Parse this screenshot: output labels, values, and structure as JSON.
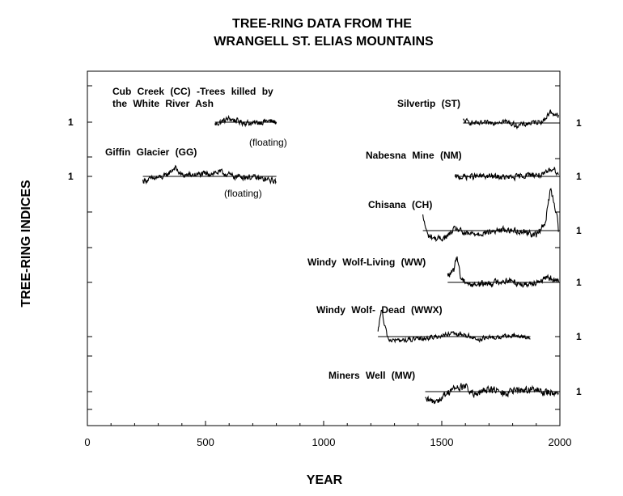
{
  "chart_data": {
    "type": "line",
    "title_line1": "TREE-RING DATA FROM THE",
    "title_line2": "WRANGELL ST. ELIAS MOUNTAINS",
    "xlabel": "YEAR",
    "ylabel": "TREE-RING INDICES",
    "xlim": [
      0,
      2000
    ],
    "xticks": [
      0,
      500,
      1000,
      1500,
      2000
    ],
    "reference_value_label": "1",
    "series": [
      {
        "id": "cc",
        "label_lines": [
          "Cub Creek (CC) -Trees killed by",
          "the White River Ash"
        ],
        "note": "(floating)",
        "start": 540,
        "end": 800,
        "index_label_side": "left",
        "profile": [
          [
            540,
            0.95
          ],
          [
            600,
            1.08
          ],
          [
            650,
            1.0
          ],
          [
            700,
            0.97
          ],
          [
            760,
            1.03
          ],
          [
            800,
            1.0
          ]
        ],
        "amplitude": 0.09
      },
      {
        "id": "gg",
        "label_lines": [
          "Giffin Glacier (GG)"
        ],
        "note": "(floating)",
        "start": 235,
        "end": 800,
        "index_label_side": "left",
        "profile": [
          [
            235,
            0.9
          ],
          [
            280,
            0.95
          ],
          [
            330,
            1.0
          ],
          [
            370,
            1.2
          ],
          [
            400,
            1.02
          ],
          [
            500,
            1.05
          ],
          [
            560,
            1.1
          ],
          [
            620,
            1.0
          ],
          [
            700,
            0.98
          ],
          [
            760,
            0.92
          ],
          [
            800,
            0.9
          ]
        ],
        "amplitude": 0.09
      },
      {
        "id": "st",
        "label_lines": [
          "Silvertip (ST)"
        ],
        "note": "",
        "start": 1590,
        "end": 1995,
        "index_label_side": "right",
        "profile": [
          [
            1590,
            1.05
          ],
          [
            1650,
            0.98
          ],
          [
            1700,
            1.0
          ],
          [
            1760,
            1.05
          ],
          [
            1820,
            0.94
          ],
          [
            1880,
            1.0
          ],
          [
            1930,
            1.05
          ],
          [
            1960,
            1.25
          ],
          [
            1995,
            1.15
          ]
        ],
        "amplitude": 0.08
      },
      {
        "id": "nm",
        "label_lines": [
          "Nabesna Mine (NM)"
        ],
        "note": "",
        "start": 1555,
        "end": 1995,
        "index_label_side": "right",
        "profile": [
          [
            1555,
            0.98
          ],
          [
            1620,
            1.0
          ],
          [
            1700,
            1.0
          ],
          [
            1800,
            0.97
          ],
          [
            1880,
            1.05
          ],
          [
            1930,
            1.02
          ],
          [
            1970,
            1.2
          ],
          [
            1995,
            1.05
          ]
        ],
        "amplitude": 0.09
      },
      {
        "id": "ch",
        "label_lines": [
          "Chisana (CH)"
        ],
        "note": "",
        "start": 1420,
        "end": 1995,
        "index_label_side": "right",
        "profile": [
          [
            1420,
            1.3
          ],
          [
            1440,
            0.9
          ],
          [
            1480,
            0.82
          ],
          [
            1520,
            0.86
          ],
          [
            1560,
            1.05
          ],
          [
            1600,
            0.92
          ],
          [
            1680,
            0.95
          ],
          [
            1760,
            1.02
          ],
          [
            1850,
            0.98
          ],
          [
            1900,
            0.9
          ],
          [
            1940,
            1.2
          ],
          [
            1960,
            1.9
          ],
          [
            1975,
            1.6
          ],
          [
            1990,
            1.3
          ],
          [
            1995,
            0.9
          ]
        ],
        "amplitude": 0.09
      },
      {
        "id": "ww",
        "label_lines": [
          "Windy Wolf-Living (WW)"
        ],
        "note": "",
        "start": 1525,
        "end": 1995,
        "index_label_side": "right",
        "profile": [
          [
            1525,
            1.15
          ],
          [
            1550,
            1.25
          ],
          [
            1565,
            1.6
          ],
          [
            1580,
            1.1
          ],
          [
            1620,
            0.95
          ],
          [
            1700,
            0.98
          ],
          [
            1780,
            1.05
          ],
          [
            1850,
            0.95
          ],
          [
            1920,
            1.05
          ],
          [
            1960,
            1.1
          ],
          [
            1995,
            1.0
          ]
        ],
        "amplitude": 0.1
      },
      {
        "id": "wwx",
        "label_lines": [
          "Windy Wolf- Dead (WWX)"
        ],
        "note": "",
        "start": 1230,
        "end": 1875,
        "index_label_side": "right",
        "profile": [
          [
            1230,
            1.1
          ],
          [
            1245,
            1.9
          ],
          [
            1255,
            1.4
          ],
          [
            1275,
            0.9
          ],
          [
            1320,
            0.88
          ],
          [
            1400,
            0.92
          ],
          [
            1480,
            1.0
          ],
          [
            1540,
            1.08
          ],
          [
            1600,
            1.05
          ],
          [
            1650,
            0.92
          ],
          [
            1720,
            0.97
          ],
          [
            1800,
            1.02
          ],
          [
            1850,
            1.0
          ],
          [
            1875,
            0.95
          ]
        ],
        "amplitude": 0.1
      },
      {
        "id": "mw",
        "label_lines": [
          "Miners Well (MW)"
        ],
        "note": "",
        "start": 1430,
        "end": 1995,
        "index_label_side": "right",
        "profile": [
          [
            1430,
            0.8
          ],
          [
            1460,
            0.78
          ],
          [
            1500,
            0.85
          ],
          [
            1540,
            1.05
          ],
          [
            1600,
            1.12
          ],
          [
            1640,
            0.9
          ],
          [
            1700,
            1.08
          ],
          [
            1760,
            0.95
          ],
          [
            1820,
            1.03
          ],
          [
            1880,
            1.05
          ],
          [
            1940,
            0.98
          ],
          [
            1995,
            1.0
          ]
        ],
        "amplitude": 0.12
      }
    ]
  }
}
